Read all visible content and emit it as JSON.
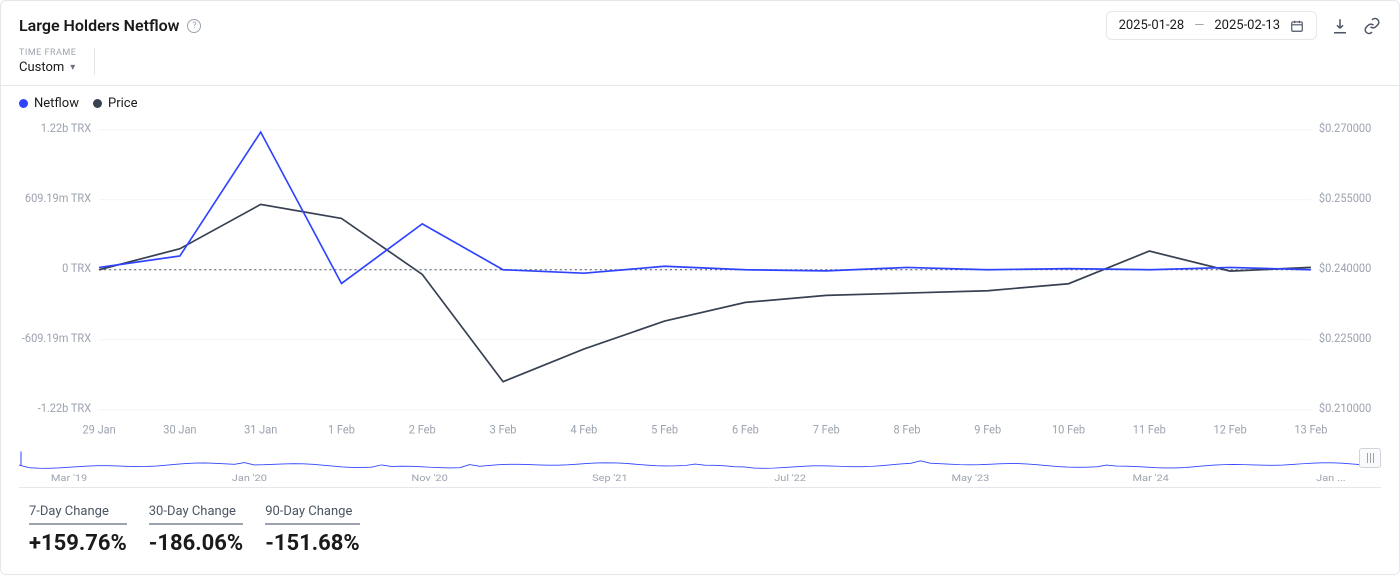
{
  "title": "Large Holders Netflow",
  "date_range": {
    "start": "2025-01-28",
    "end": "2025-02-13"
  },
  "timeframe": {
    "label": "TIME FRAME",
    "value": "Custom"
  },
  "legend": [
    {
      "name": "Netflow",
      "color": "#2f43ff"
    },
    {
      "name": "Price",
      "color": "#374151"
    }
  ],
  "chart": {
    "type": "line-dual-axis",
    "x_labels": [
      "29 Jan",
      "30 Jan",
      "31 Jan",
      "1 Feb",
      "2 Feb",
      "3 Feb",
      "4 Feb",
      "5 Feb",
      "6 Feb",
      "7 Feb",
      "8 Feb",
      "9 Feb",
      "10 Feb",
      "11 Feb",
      "12 Feb",
      "13 Feb"
    ],
    "left_axis": {
      "labels": [
        "1.22b TRX",
        "609.19m TRX",
        "0 TRX",
        "-609.19m TRX",
        "-1.22b TRX"
      ],
      "min": -1.22,
      "max": 1.22
    },
    "right_axis": {
      "labels": [
        "$0.270000",
        "$0.255000",
        "$0.240000",
        "$0.225000",
        "$0.210000"
      ],
      "min": 0.21,
      "max": 0.27
    },
    "netflow_values": [
      0.02,
      0.12,
      1.2,
      -0.12,
      0.4,
      0.0,
      -0.03,
      0.03,
      0.0,
      -0.01,
      0.02,
      0.0,
      0.01,
      0.0,
      0.02,
      0.0
    ],
    "price_values": [
      0.24,
      0.2445,
      0.254,
      0.251,
      0.239,
      0.216,
      0.223,
      0.229,
      0.233,
      0.2345,
      0.235,
      0.2355,
      0.237,
      0.244,
      0.2397,
      0.2405
    ],
    "netflow_color": "#2f43ff",
    "price_color": "#374151",
    "line_width": 1.6,
    "grid_color": "#f3f4f6",
    "zero_color": "#4b5563"
  },
  "mini_chart": {
    "labels": [
      "Mar '19",
      "Jan '20",
      "Nov '20",
      "Sep '21",
      "Jul '22",
      "May '23",
      "Mar '24",
      "Jan ..."
    ],
    "color": "#2f43ff"
  },
  "changes": [
    {
      "label": "7-Day Change",
      "value": "+159.76%"
    },
    {
      "label": "30-Day Change",
      "value": "-186.06%"
    },
    {
      "label": "90-Day Change",
      "value": "-151.68%"
    }
  ],
  "colors": {
    "text_muted": "#9ca3af"
  }
}
